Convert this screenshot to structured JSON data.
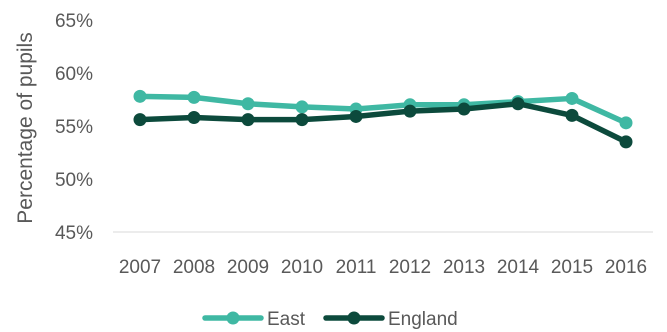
{
  "chart_data": {
    "type": "line",
    "title": "",
    "xlabel": "",
    "ylabel": "Percentage of pupils",
    "categories": [
      "2007",
      "2008",
      "2009",
      "2010",
      "2011",
      "2012",
      "2013",
      "2014",
      "2015",
      "2016"
    ],
    "ylim": [
      45,
      65
    ],
    "yticks": [
      45,
      50,
      55,
      60,
      65
    ],
    "ytick_labels": [
      "45%",
      "50%",
      "55%",
      "60%",
      "65%"
    ],
    "grid": false,
    "legend_position": "bottom",
    "series": [
      {
        "name": "East",
        "color": "#3fb8a3",
        "values": [
          57.8,
          57.7,
          57.1,
          56.8,
          56.6,
          57.0,
          57.0,
          57.3,
          57.6,
          55.3
        ]
      },
      {
        "name": "England",
        "color": "#0c4a3c",
        "values": [
          55.6,
          55.8,
          55.6,
          55.6,
          55.9,
          56.4,
          56.6,
          57.1,
          56.0,
          53.5
        ]
      }
    ]
  }
}
